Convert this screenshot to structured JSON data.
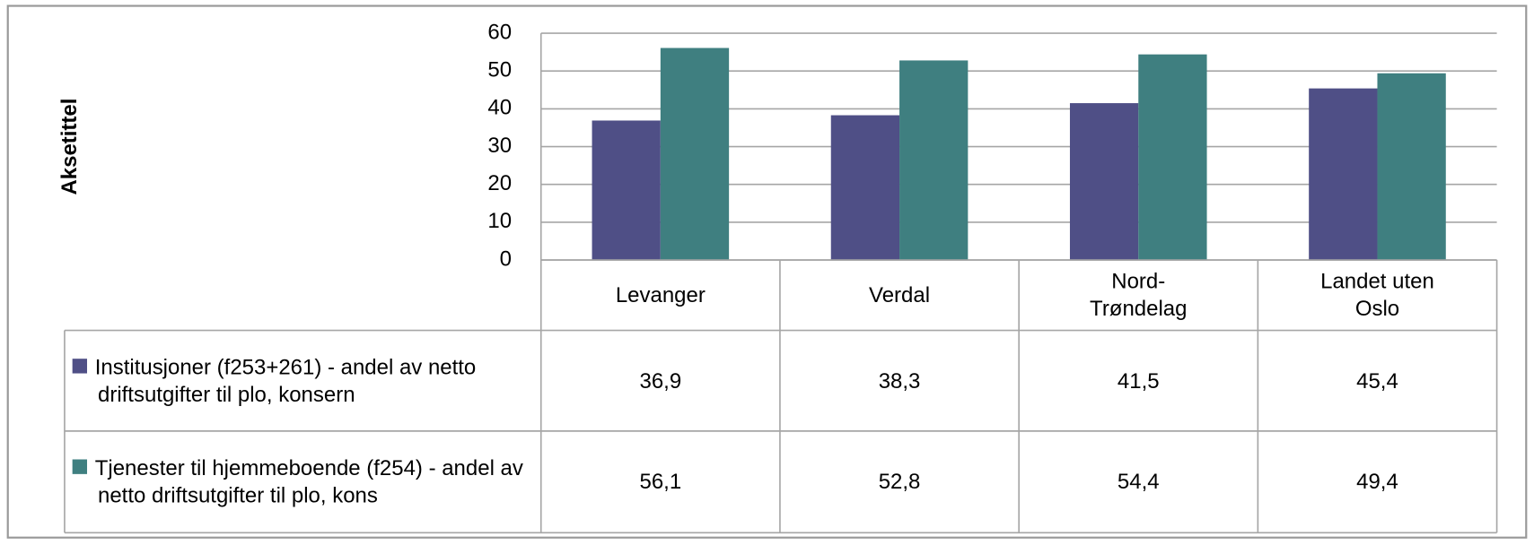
{
  "chart_data": {
    "type": "bar",
    "y_axis_label": "Aksetittel",
    "categories": [
      "Levanger",
      "Verdal",
      "Nord-Trøndelag",
      "Landet uten Oslo"
    ],
    "series": [
      {
        "name": "Institusjoner (f253+261) - andel av netto driftsutgifter til plo, konsern",
        "color": "#4f4f86",
        "values": [
          36.9,
          38.3,
          41.5,
          45.4
        ],
        "value_labels": [
          "36,9",
          "38,3",
          "41,5",
          "45,4"
        ]
      },
      {
        "name": "Tjenester til hjemmeboende (f254) - andel av netto driftsutgifter til plo, kons",
        "color": "#3f7f80",
        "values": [
          56.1,
          52.8,
          54.4,
          49.4
        ],
        "value_labels": [
          "56,1",
          "52,8",
          "54,4",
          "49,4"
        ]
      }
    ],
    "ylim": [
      0,
      60
    ],
    "yticks": [
      0,
      10,
      20,
      30,
      40,
      50,
      60
    ],
    "grid": true,
    "legend": "table"
  }
}
